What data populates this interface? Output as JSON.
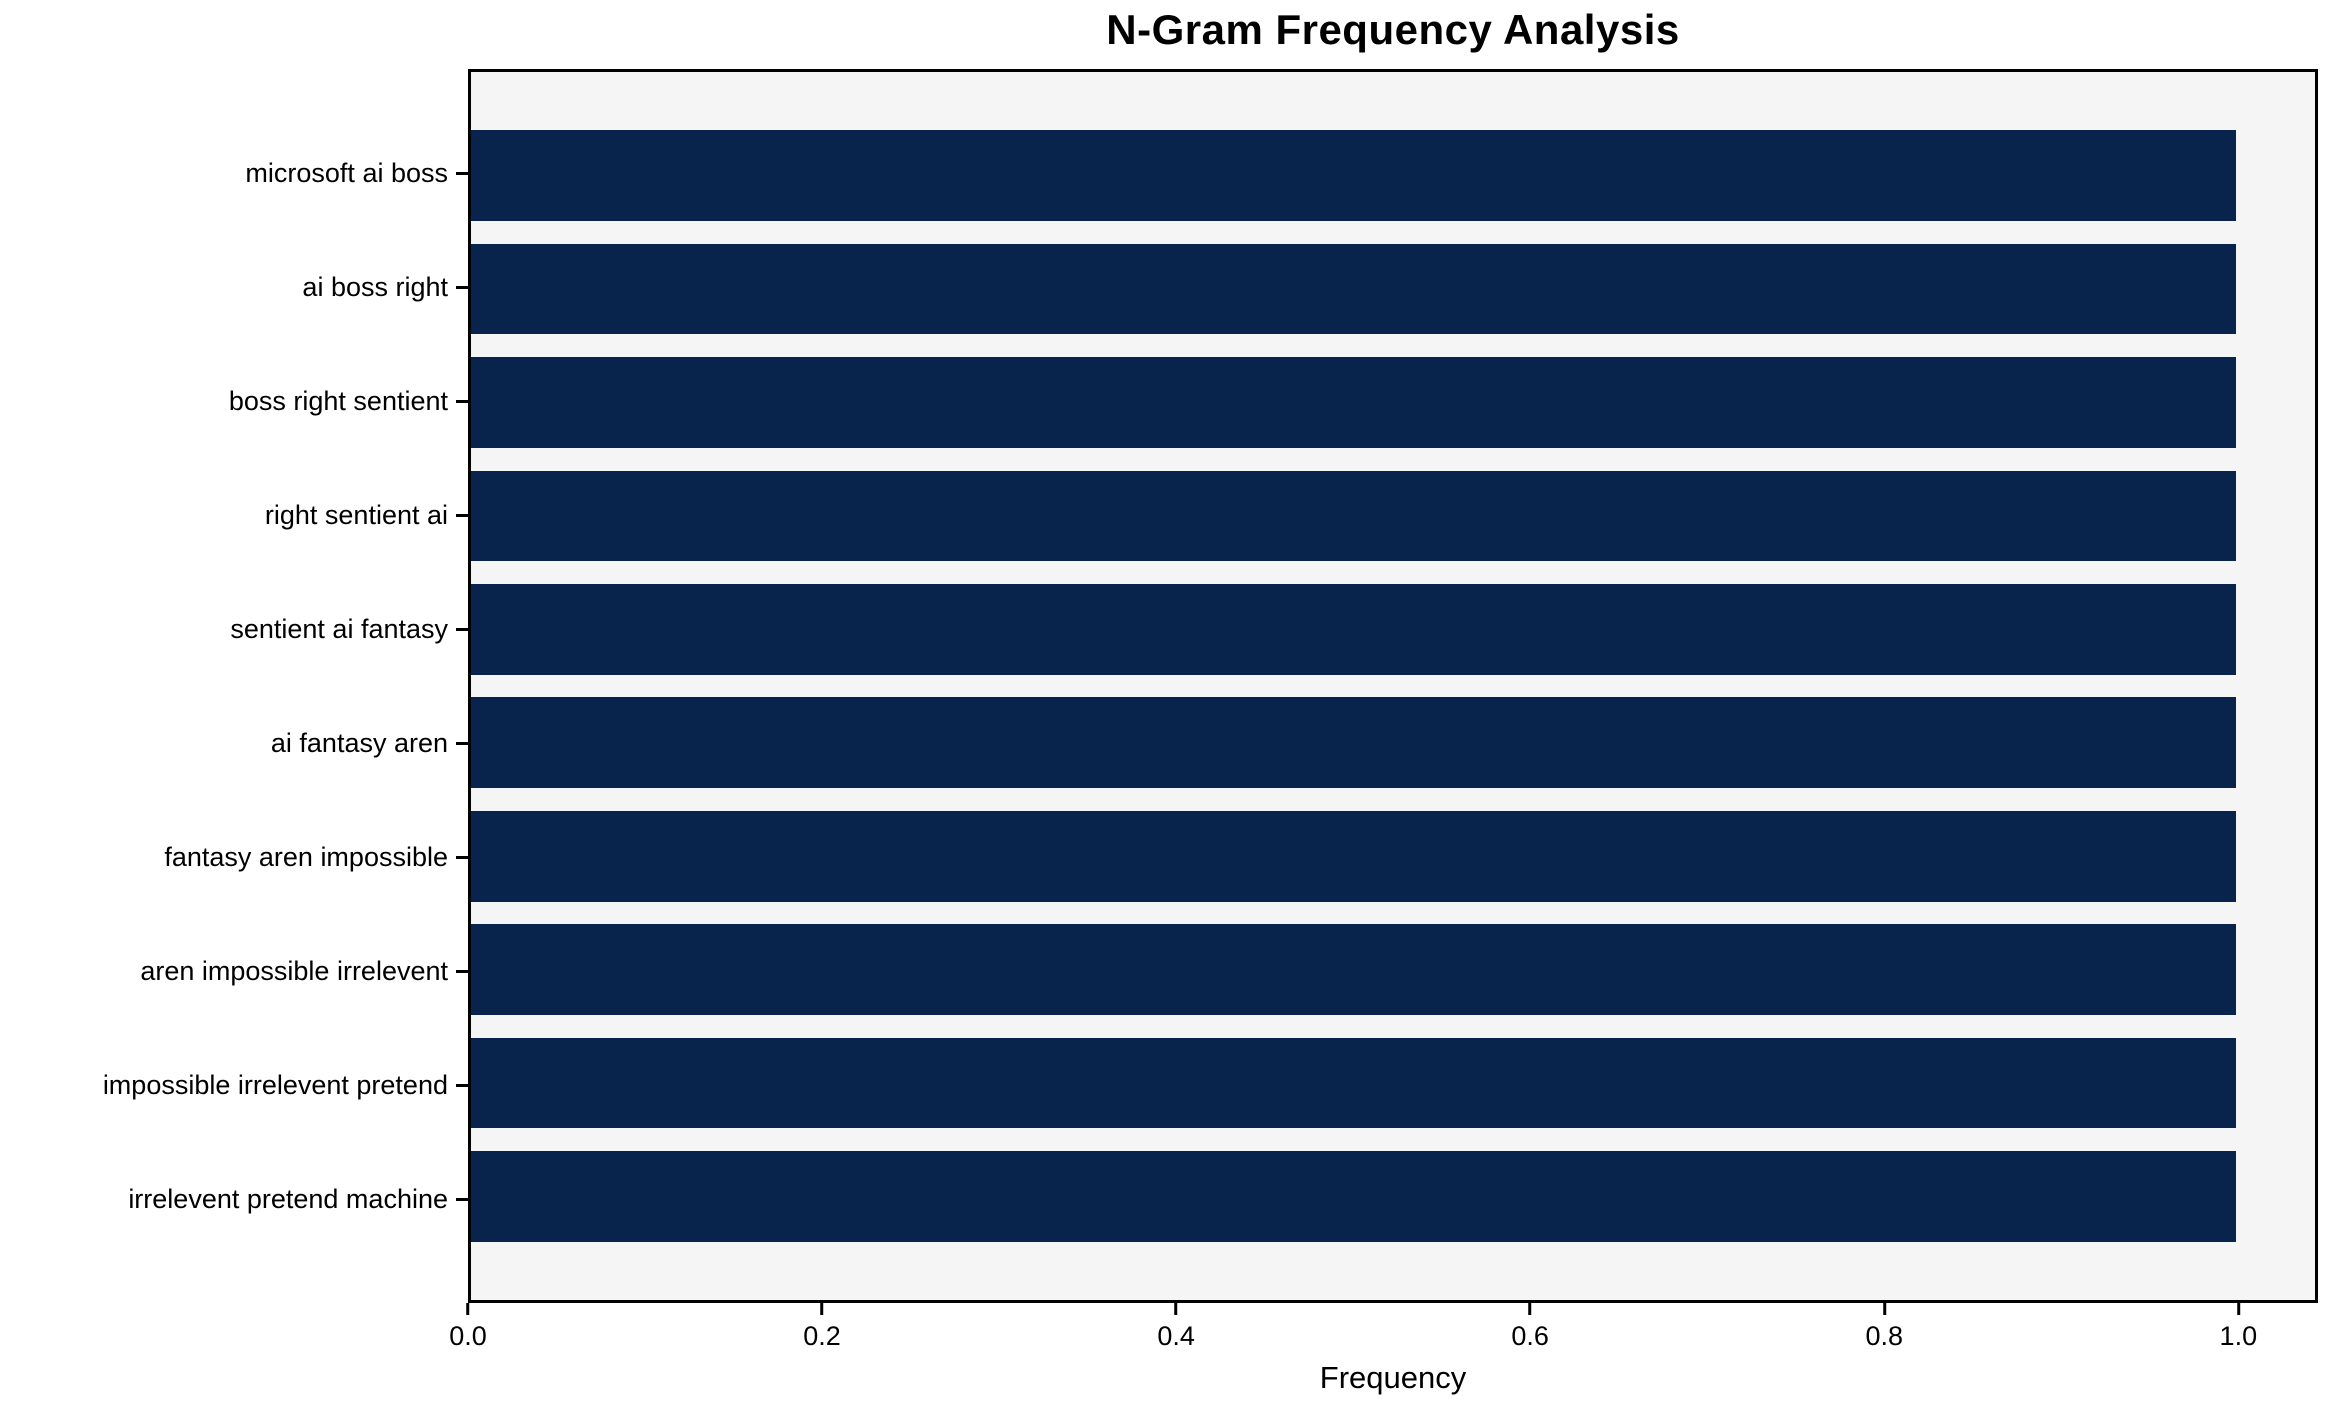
{
  "chart_data": {
    "type": "bar",
    "orientation": "horizontal",
    "title": "N-Gram Frequency Analysis",
    "categories": [
      "microsoft ai boss",
      "ai boss right",
      "boss right sentient",
      "right sentient ai",
      "sentient ai fantasy",
      "ai fantasy aren",
      "fantasy aren impossible",
      "aren impossible irrelevent",
      "impossible irrelevent pretend",
      "irrelevent pretend machine"
    ],
    "values": [
      1.0,
      1.0,
      1.0,
      1.0,
      1.0,
      1.0,
      1.0,
      1.0,
      1.0,
      1.0
    ],
    "xlabel": "Frequency",
    "ylabel": "",
    "xlim": [
      0,
      1.045
    ],
    "xticks": [
      0.0,
      0.2,
      0.4,
      0.6,
      0.8,
      1.0
    ],
    "xtick_labels": [
      "0.0",
      "0.2",
      "0.4",
      "0.6",
      "0.8",
      "1.0"
    ],
    "grid": false,
    "legend": null,
    "bar_height_fraction": 0.8,
    "colors": {
      "bar": "#08244c",
      "plot_background": "#f5f5f6",
      "figure_background": "#ffffff",
      "text": "#000000",
      "spine": "#000000"
    }
  }
}
